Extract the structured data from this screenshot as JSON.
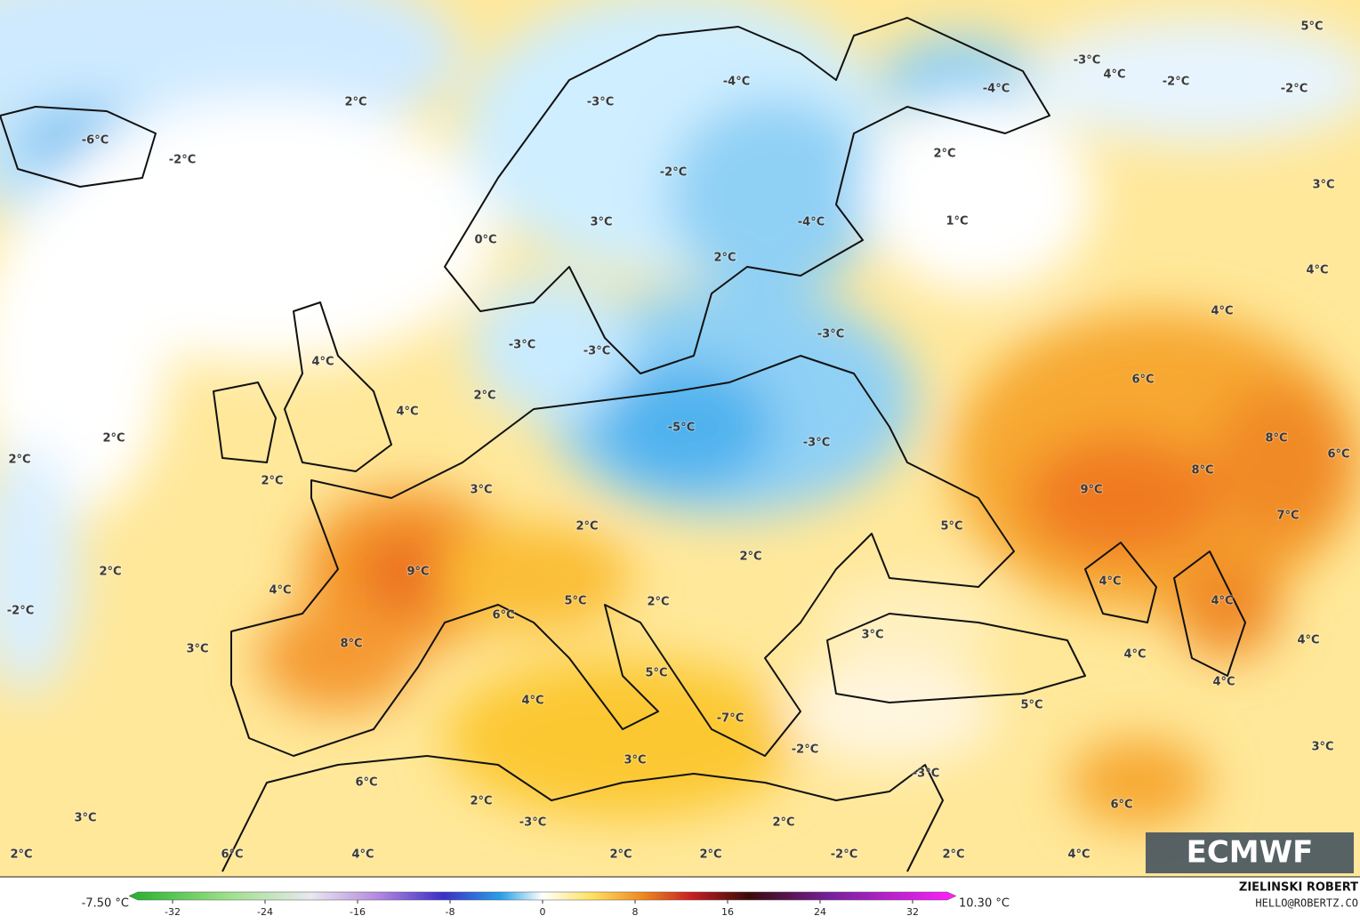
{
  "map": {
    "labels": [
      "2°C",
      "-6°C",
      "-2°C",
      "-3°C",
      "-4°C",
      "-4°C",
      "-3°C",
      "4°C",
      "-2°C",
      "-2°C",
      "5°C",
      "2°C",
      "-2°C",
      "3°C",
      "3°C",
      "0°C",
      "-4°C",
      "1°C",
      "2°C",
      "4°C",
      "4°C",
      "-3°C",
      "-3°C",
      "-3°C",
      "4°C",
      "6°C",
      "2°C",
      "4°C",
      "-5°C",
      "-3°C",
      "8°C",
      "2°C",
      "2°C",
      "6°C",
      "2°C",
      "8°C",
      "3°C",
      "9°C",
      "7°C",
      "5°C",
      "2°C",
      "2°C",
      "2°C",
      "9°C",
      "4°C",
      "4°C",
      "5°C",
      "2°C",
      "4°C",
      "-2°C",
      "6°C",
      "3°C",
      "4°C",
      "8°C",
      "3°C",
      "4°C",
      "5°C",
      "4°C",
      "4°C",
      "5°C",
      "-7°C",
      "3°C",
      "-2°C",
      "3°C",
      "-3°C",
      "6°C",
      "2°C",
      "6°C",
      "3°C",
      "-3°C",
      "2°C",
      "2°C",
      "6°C",
      "4°C",
      "2°C",
      "2°C",
      "-2°C",
      "2°C",
      "4°C"
    ]
  },
  "logo": "ECMWF",
  "colorbar": {
    "min_label": "-7.50 °C",
    "max_label": "10.30 °C",
    "range": [
      -35,
      35
    ],
    "ticks": [
      -32,
      -24,
      -16,
      -8,
      0,
      8,
      16,
      24,
      32
    ]
  },
  "credit": {
    "author": "ZIELINSKI ROBERT",
    "email": "HELLO@ROBERTZ.CO"
  }
}
